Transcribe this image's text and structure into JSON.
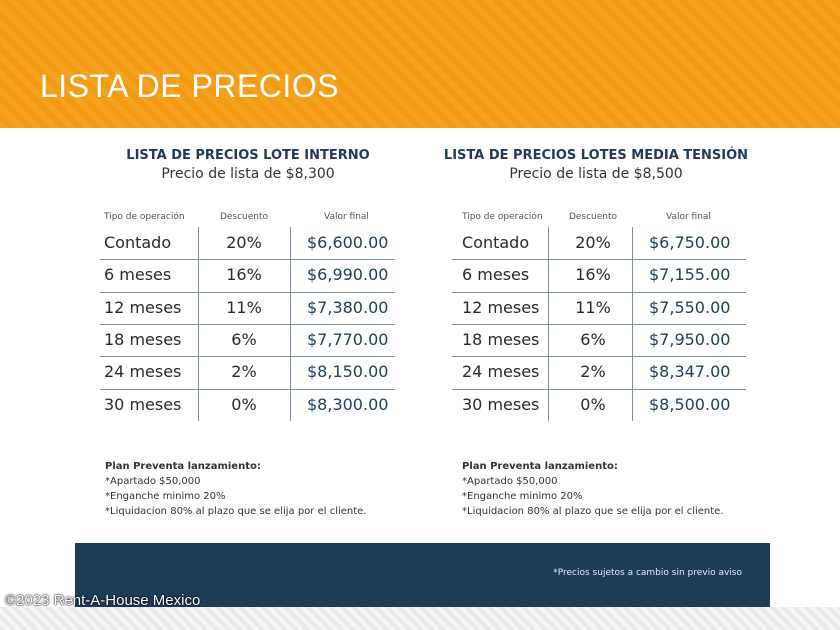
{
  "header": {
    "title": "LISTA DE PRECIOS"
  },
  "tables": [
    {
      "title": "LISTA DE PRECIOS LOTE INTERNO",
      "subtitle": "Precio de lista de $8,300",
      "columns": [
        "Tipo de operación",
        "Descuento",
        "Valor final"
      ],
      "rows": [
        [
          "Contado",
          "20%",
          "$6,600.00"
        ],
        [
          "6 meses",
          "16%",
          "$6,990.00"
        ],
        [
          "12 meses",
          "11%",
          "$7,380.00"
        ],
        [
          "18 meses",
          "6%",
          "$7,770.00"
        ],
        [
          "24 meses",
          "2%",
          "$8,150.00"
        ],
        [
          "30 meses",
          "0%",
          "$8,300.00"
        ]
      ],
      "notes": {
        "heading": "Plan Preventa lanzamiento:",
        "items": [
          "*Apartado $50,000",
          "*Enganche minimo 20%",
          "*Liquidacion 80% al plazo que se elija por el cliente."
        ]
      }
    },
    {
      "title": "LISTA DE PRECIOS LOTES MEDIA TENSIÓN",
      "subtitle": "Precio de lista de $8,500",
      "columns": [
        "Tipo de operación",
        "Descuento",
        "Valor final"
      ],
      "rows": [
        [
          "Contado",
          "20%",
          "$6,750.00"
        ],
        [
          "6 meses",
          "16%",
          "$7,155.00"
        ],
        [
          "12 meses",
          "11%",
          "$7,550.00"
        ],
        [
          "18 meses",
          "6%",
          "$7,950.00"
        ],
        [
          "24 meses",
          "2%",
          "$8,347.00"
        ],
        [
          "30 meses",
          "0%",
          "$8,500.00"
        ]
      ],
      "notes": {
        "heading": "Plan Preventa lanzamiento:",
        "items": [
          "*Apartado $50,000",
          "*Enganche minimo 20%",
          "*Liquidacion 80% al plazo que se elija por el cliente."
        ]
      }
    }
  ],
  "footer": {
    "note": "*Precios sujetos a cambio sin previo aviso"
  },
  "watermark": "©2023 Rent-A-House Mexico"
}
